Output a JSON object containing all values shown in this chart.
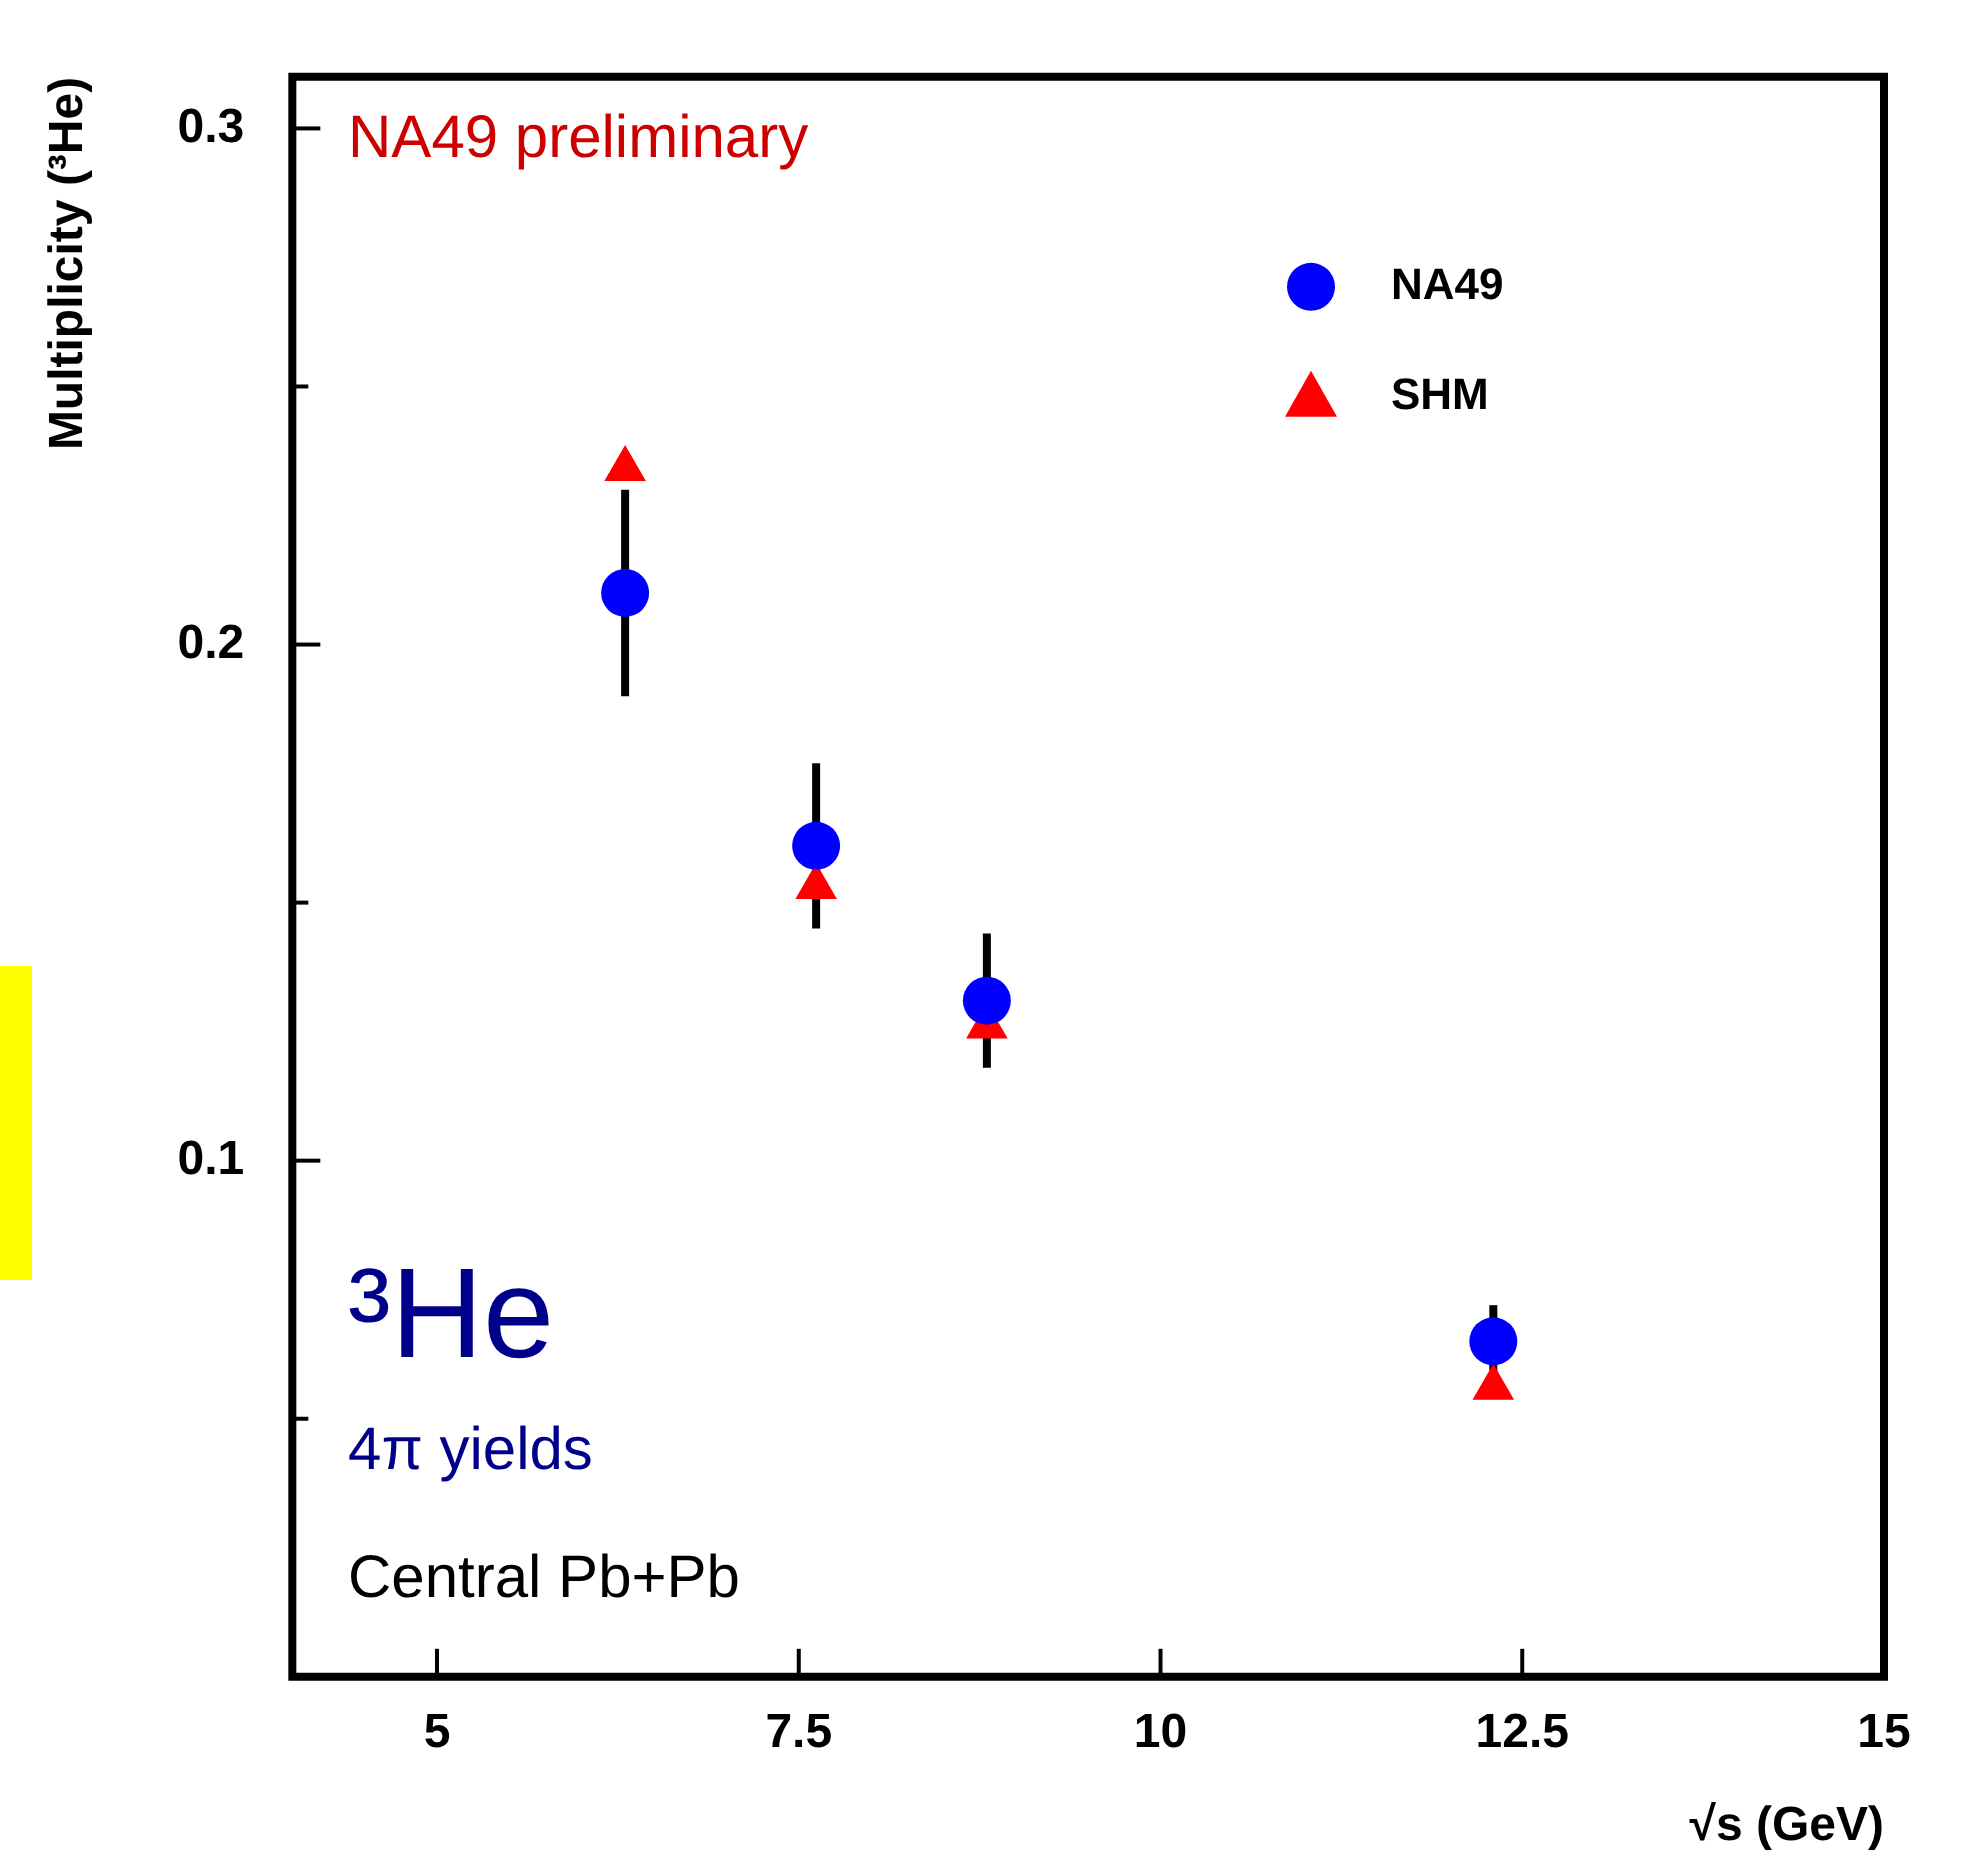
{
  "chart_data": {
    "type": "scatter",
    "xlabel": "√s (GeV)",
    "ylabel": "Multiplicity (³He)",
    "xlim": [
      4,
      15
    ],
    "xticks": [
      5,
      7.5,
      10,
      12.5,
      15
    ],
    "ylim": [
      0,
      0.31
    ],
    "yticks": [
      {
        "value": 0.05,
        "label": null
      },
      {
        "value": 0.1,
        "label": "0.1"
      },
      {
        "value": 0.15,
        "label": null
      },
      {
        "value": 0.2,
        "label": "0.2"
      },
      {
        "value": 0.25,
        "label": null
      },
      {
        "value": 0.3,
        "label": "0.3"
      }
    ],
    "grid": false,
    "legend": "top right",
    "series": [
      {
        "name": "NA49",
        "color": "#0000ff",
        "marker": "circle",
        "x": [
          6.3,
          7.62,
          8.8,
          12.3
        ],
        "values": [
          0.21,
          0.161,
          0.131,
          0.065
        ],
        "errors": [
          0.02,
          0.016,
          0.013,
          0.007
        ]
      },
      {
        "name": "SHM",
        "color": "#ff0000",
        "marker": "triangle",
        "x": [
          6.3,
          7.62,
          8.8,
          12.3
        ],
        "values": [
          0.234,
          0.153,
          0.126,
          0.056
        ]
      }
    ],
    "annotations": [
      "NA49 preliminary",
      "³He",
      "4π yields",
      "Central Pb+Pb"
    ]
  }
}
